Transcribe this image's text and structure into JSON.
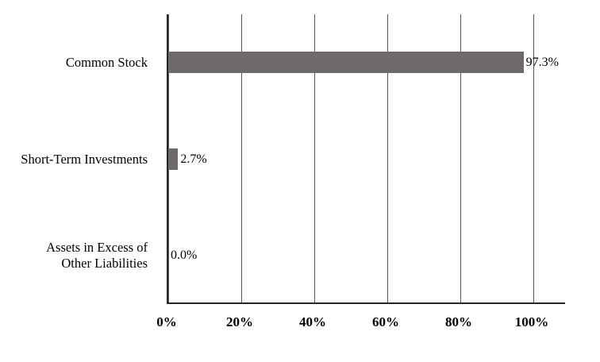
{
  "chart_data": {
    "type": "bar",
    "orientation": "horizontal",
    "categories": [
      "Common Stock",
      "Short-Term Investments",
      "Assets in Excess of\nOther Liabilities"
    ],
    "values": [
      97.3,
      2.7,
      0.0
    ],
    "value_labels": [
      "97.3%",
      "2.7%",
      "0.0%"
    ],
    "x_ticks": [
      0,
      20,
      40,
      60,
      80,
      100
    ],
    "x_tick_labels": [
      "0%",
      "20%",
      "40%",
      "60%",
      "80%",
      "100%"
    ],
    "xlim": [
      0,
      100
    ],
    "grid": true,
    "legend": "none",
    "bar_color": "#6e6a6a"
  }
}
